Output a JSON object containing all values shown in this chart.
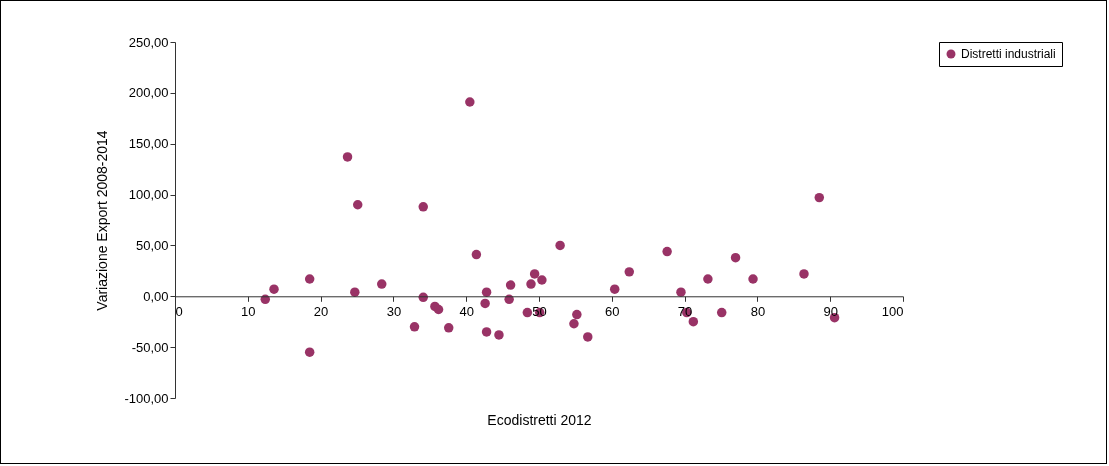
{
  "chart_data": {
    "type": "scatter",
    "xlabel": "Ecodistretti 2012",
    "ylabel": "Variazione Export 2008-2014",
    "series": [
      {
        "name": "Distretti industriali",
        "color": "#993366",
        "x": [
          12.4,
          13.6,
          18.5,
          18.5,
          23.7,
          24.7,
          25.1,
          28.4,
          32.9,
          34.1,
          34.1,
          35.7,
          36.2,
          37.6,
          40.5,
          41.4,
          42.8,
          42.6,
          42.8,
          44.5,
          45.9,
          46.1,
          48.4,
          48.9,
          49.4,
          50.1,
          50.4,
          52.9,
          54.8,
          55.2,
          56.7,
          60.4,
          62.4,
          67.6,
          69.5,
          70.3,
          71.2,
          73.2,
          75.1,
          77.0,
          79.4,
          86.4,
          88.5,
          90.6
        ],
        "values": [
          -3,
          7,
          17,
          -55,
          137,
          4,
          90,
          12,
          -30,
          88,
          -1,
          -10,
          -13,
          -31,
          191,
          41,
          4,
          -7,
          -35,
          -38,
          -3,
          11,
          -16,
          12,
          22,
          -16,
          16,
          50,
          -27,
          -18,
          -40,
          7,
          24,
          44,
          4,
          -16,
          -25,
          17,
          -16,
          38,
          17,
          22,
          97,
          -21
        ]
      }
    ],
    "xlim": [
      0,
      100
    ],
    "xticks": [
      0,
      10,
      20,
      30,
      40,
      50,
      60,
      70,
      80,
      90,
      100
    ],
    "ylim": [
      -100,
      250
    ],
    "yticks": [
      {
        "value": -100,
        "label": "-100,00"
      },
      {
        "value": -50,
        "label": "-50,00"
      },
      {
        "value": 0,
        "label": "0,00"
      },
      {
        "value": 50,
        "label": "50,00"
      },
      {
        "value": 100,
        "label": "100,00"
      },
      {
        "value": 150,
        "label": "150,00"
      },
      {
        "value": 200,
        "label": "200,00"
      },
      {
        "value": 250,
        "label": "250,00"
      }
    ],
    "marker": "circle",
    "legend": "right"
  }
}
